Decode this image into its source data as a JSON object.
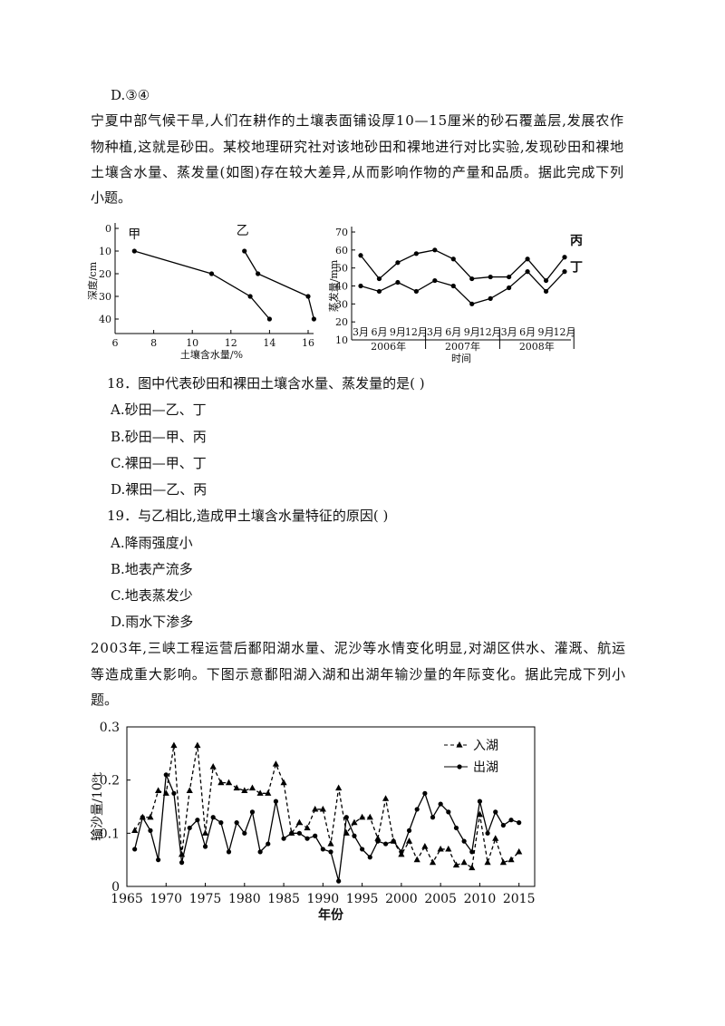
{
  "top_option": "D.③④",
  "passage1": [
    "宁夏中部气候干旱,人们在耕作的土壤表面铺设厚10—15厘米的砂石覆盖层,发展农作",
    "物种植,这就是砂田。某校地理研究社对该地砂田和裸地进行对比实验,发现砂田和裸地",
    "土壤含水量、蒸发量(如图)存在较大差异,从而影响作物的产量和品质。据此完成下列",
    "小题。"
  ],
  "questions": [
    {
      "stem": "18．图中代表砂田和裸田土壤含水量、蒸发量的是(    )",
      "options": [
        "A.砂田—乙、丁",
        "B.砂田—甲、丙",
        "C.裸田—甲、丁",
        "D.裸田—乙、丙"
      ]
    },
    {
      "stem": "19．与乙相比,造成甲土壤含水量特征的原因(    )",
      "options": [
        "A.降雨强度小",
        "B.地表产流多",
        "C.地表蒸发少",
        "D.雨水下渗多"
      ]
    }
  ],
  "passage2": [
    "2003年,三峡工程运营后鄱阳湖水量、泥沙等水情变化明显,对湖区供水、灌溉、航运",
    "等造成重大影响。下图示意鄱阳湖入湖和出湖年输沙量的年际变化。据此完成下列小",
    "题。"
  ],
  "chart_data": [
    {
      "type": "line",
      "xlabel": "土壤含水量/%",
      "ylabel": "深度/cm",
      "xlim": [
        6,
        16
      ],
      "xticks": [
        6,
        8,
        10,
        12,
        14,
        16
      ],
      "ylim": [
        40,
        0
      ],
      "yticks": [
        0,
        10,
        20,
        30,
        40
      ],
      "depths": [
        10,
        20,
        30,
        40
      ],
      "series": [
        {
          "name": "甲",
          "color": "#000000",
          "values": [
            7,
            11,
            13,
            14
          ]
        },
        {
          "name": "乙",
          "color": "#000000",
          "values": [
            12.7,
            13.4,
            16,
            16.3
          ]
        }
      ]
    },
    {
      "type": "line",
      "xlabel": "时间",
      "ylabel": "蒸发量/mm",
      "categories": [
        "3月",
        "6月",
        "9月",
        "12月",
        "3月",
        "6月",
        "9月",
        "12月",
        "3月",
        "6月",
        "9月",
        "12月"
      ],
      "year_groups": [
        "2006年",
        "2007年",
        "2008年"
      ],
      "ylim": [
        10,
        70
      ],
      "yticks": [
        10,
        20,
        30,
        40,
        50,
        60,
        70
      ],
      "series": [
        {
          "name": "丙",
          "color": "#000000",
          "values": [
            57,
            44,
            53,
            58,
            60,
            55,
            44,
            45,
            45,
            55,
            43,
            56
          ]
        },
        {
          "name": "丁",
          "color": "#000000",
          "values": [
            40,
            37,
            42,
            37,
            43,
            40,
            30,
            33,
            39,
            48,
            37,
            48
          ]
        }
      ]
    },
    {
      "type": "line",
      "xlabel": "年份",
      "ylabel": "输沙量/10⁸t",
      "legend": "upper right",
      "xlim": [
        1965,
        2017
      ],
      "xticks": [
        1965,
        1970,
        1975,
        1980,
        1985,
        1990,
        1995,
        2000,
        2005,
        2010,
        2015
      ],
      "ylim": [
        0,
        0.3
      ],
      "yticks": [
        0,
        0.1,
        0.2,
        0.3
      ],
      "x": [
        1966,
        1967,
        1968,
        1969,
        1970,
        1971,
        1972,
        1973,
        1974,
        1975,
        1976,
        1977,
        1978,
        1979,
        1980,
        1981,
        1982,
        1983,
        1984,
        1985,
        1986,
        1987,
        1988,
        1989,
        1990,
        1991,
        1992,
        1993,
        1994,
        1995,
        1996,
        1997,
        1998,
        1999,
        2000,
        2001,
        2002,
        2003,
        2004,
        2005,
        2006,
        2007,
        2008,
        2009,
        2010,
        2011,
        2012,
        2013,
        2014,
        2015
      ],
      "series": [
        {
          "name": "入湖",
          "color": "#000000",
          "dashed": true,
          "marker": "triangle",
          "values": [
            0.105,
            0.13,
            0.13,
            0.18,
            0.175,
            0.265,
            0.06,
            0.18,
            0.265,
            0.1,
            0.225,
            0.195,
            0.195,
            0.185,
            0.18,
            0.185,
            0.175,
            0.175,
            0.23,
            0.195,
            0.1,
            0.12,
            0.11,
            0.145,
            0.145,
            0.08,
            0.185,
            0.1,
            0.12,
            0.13,
            0.13,
            0.09,
            0.165,
            0.085,
            0.06,
            0.085,
            0.05,
            0.075,
            0.045,
            0.07,
            0.07,
            0.04,
            0.045,
            0.035,
            0.135,
            0.045,
            0.09,
            0.045,
            0.05,
            0.065
          ]
        },
        {
          "name": "出湖",
          "color": "#000000",
          "dashed": false,
          "marker": "circle",
          "values": [
            0.07,
            0.13,
            0.105,
            0.05,
            0.21,
            0.175,
            0.045,
            0.11,
            0.125,
            0.075,
            0.13,
            0.12,
            0.065,
            0.12,
            0.1,
            0.14,
            0.065,
            0.08,
            0.16,
            0.09,
            0.1,
            0.1,
            0.09,
            0.095,
            0.07,
            0.065,
            0.01,
            0.13,
            0.095,
            0.07,
            0.055,
            0.085,
            0.08,
            0.085,
            0.065,
            0.105,
            0.145,
            0.175,
            0.13,
            0.155,
            0.14,
            0.11,
            0.085,
            0.065,
            0.16,
            0.1,
            0.14,
            0.115,
            0.125,
            0.12
          ]
        }
      ]
    }
  ]
}
